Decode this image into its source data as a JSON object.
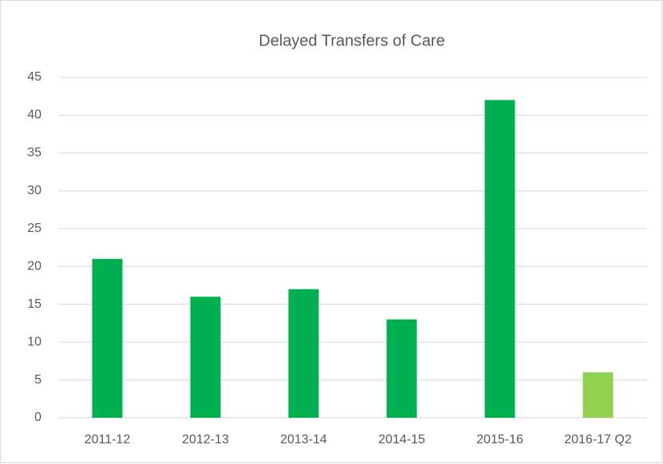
{
  "chart_data": {
    "type": "bar",
    "title": "Delayed Transfers of Care",
    "categories": [
      "2011-12",
      "2012-13",
      "2013-14",
      "2014-15",
      "2015-16",
      "2016-17 Q2"
    ],
    "values": [
      21,
      16,
      17,
      13,
      42,
      6
    ],
    "colors": [
      "#00b050",
      "#00b050",
      "#00b050",
      "#00b050",
      "#00b050",
      "#92d050"
    ],
    "ylim": [
      0,
      45
    ],
    "yticks": [
      0,
      5,
      10,
      15,
      20,
      25,
      30,
      35,
      40,
      45
    ],
    "grid": true
  }
}
